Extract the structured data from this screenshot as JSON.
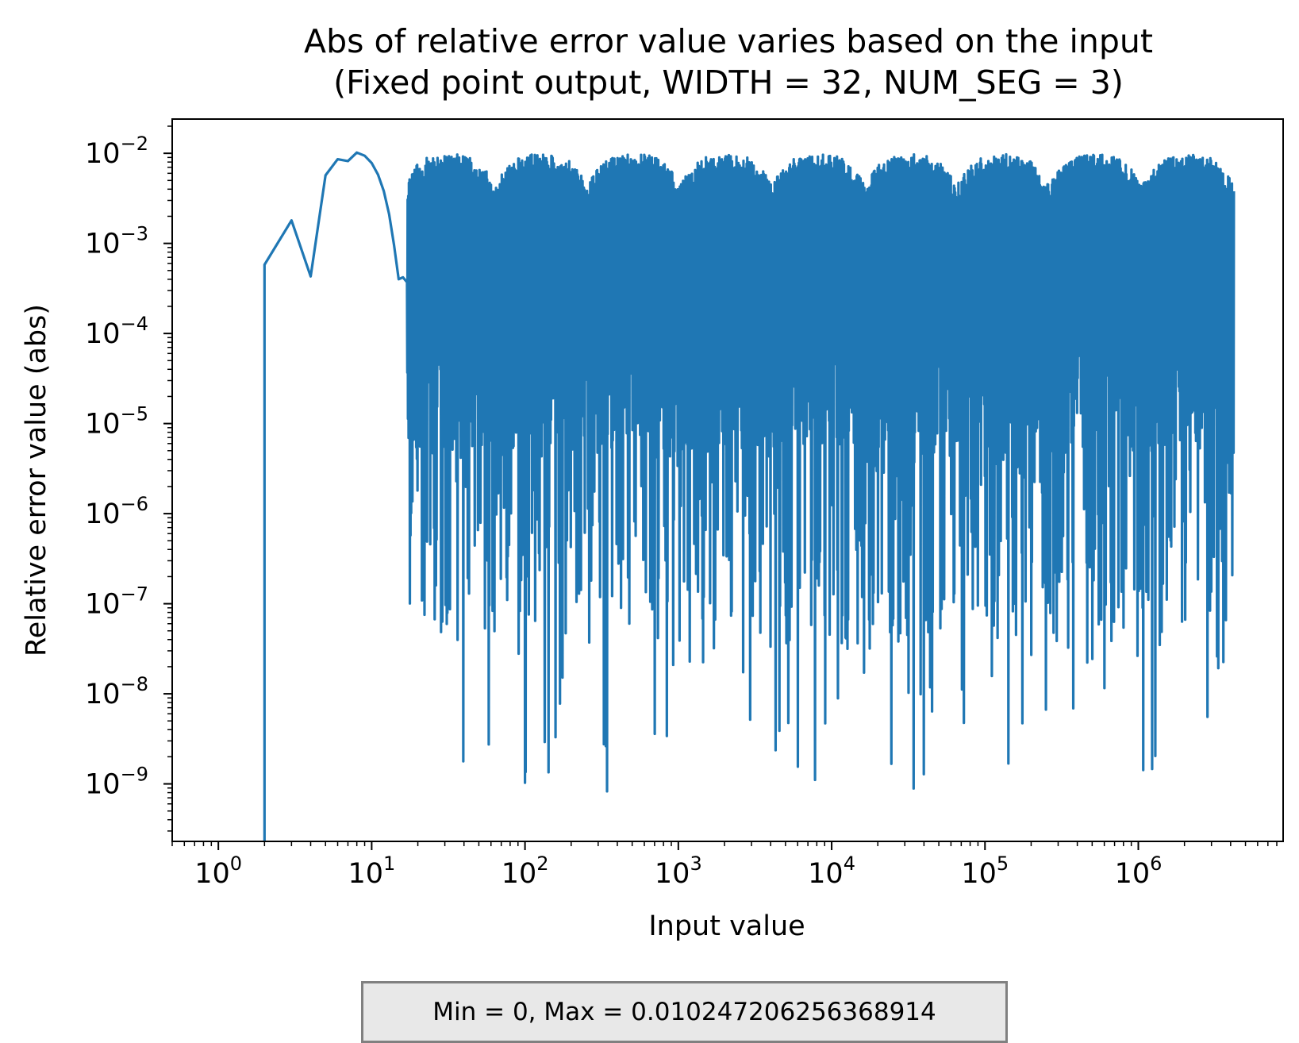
{
  "chart_data": {
    "type": "line",
    "title": "Abs of relative error value varies based on the input",
    "subtitle": "(Fixed point output, WIDTH = 32, NUM_SEG = 3)",
    "xlabel": "Input value",
    "ylabel": "Relative error value (abs)",
    "xscale": "log",
    "yscale": "log",
    "xlim": [
      0.5,
      8800000
    ],
    "ylim": [
      2.3e-10,
      0.024
    ],
    "x_ticks": [
      {
        "base": "10",
        "exp": "0",
        "value": 1
      },
      {
        "base": "10",
        "exp": "1",
        "value": 10
      },
      {
        "base": "10",
        "exp": "2",
        "value": 100
      },
      {
        "base": "10",
        "exp": "3",
        "value": 1000
      },
      {
        "base": "10",
        "exp": "4",
        "value": 10000
      },
      {
        "base": "10",
        "exp": "5",
        "value": 100000
      },
      {
        "base": "10",
        "exp": "6",
        "value": 1000000
      }
    ],
    "y_ticks": [
      {
        "base": "10",
        "exp": "−2",
        "value": 0.01
      },
      {
        "base": "10",
        "exp": "−3",
        "value": 0.001
      },
      {
        "base": "10",
        "exp": "−4",
        "value": 0.0001
      },
      {
        "base": "10",
        "exp": "−5",
        "value": 1e-05
      },
      {
        "base": "10",
        "exp": "−6",
        "value": 1e-06
      },
      {
        "base": "10",
        "exp": "−7",
        "value": 1e-07
      },
      {
        "base": "10",
        "exp": "−8",
        "value": 1e-08
      },
      {
        "base": "10",
        "exp": "−9",
        "value": 1e-09
      }
    ],
    "grid": false,
    "line_color": "#1f77b4",
    "series_low_x": [
      1,
      2,
      3,
      4,
      5,
      6,
      7,
      8,
      9,
      10,
      11,
      12,
      13,
      14,
      15,
      16,
      17
    ],
    "series_low_y": [
      0,
      0.00058,
      0.0018,
      0.00043,
      0.0057,
      0.0086,
      0.0082,
      0.0102,
      0.0094,
      0.0078,
      0.0058,
      0.0038,
      0.0021,
      0.00095,
      0.0004,
      0.00042,
      0.00037
    ],
    "series_high_x_range": [
      17,
      4200000
    ],
    "series_high_y_range": [
      5.5e-10,
      0.0102
    ],
    "stats_text": "Min = 0, Max = 0.010247206256368914"
  }
}
